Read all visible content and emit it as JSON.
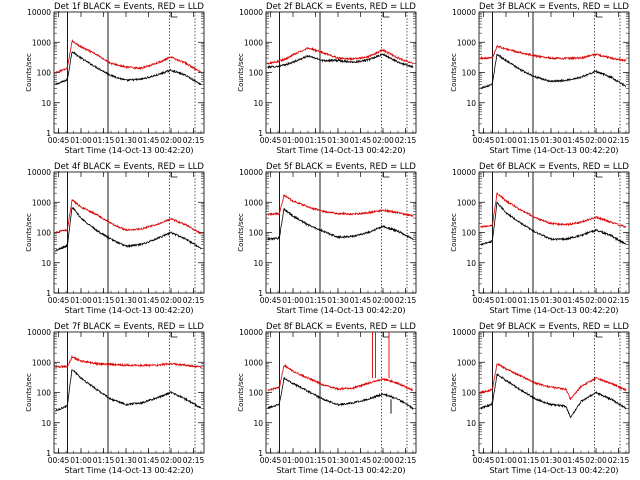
{
  "colors": {
    "background": "#ffffff",
    "axis": "#000000",
    "events": "#000000",
    "lld": "#dd0000"
  },
  "chart_data": [
    {
      "type": "line",
      "title": "Det 1f BLACK = Events, RED = LLD",
      "xlabel": "Start Time (14-Oct-13 00:42:20)",
      "ylabel": "Counts/sec",
      "y_scale": "log",
      "ylim": [
        1,
        10000
      ],
      "xlim": [
        "00:42",
        "02:22"
      ],
      "xticks": [
        "00:45",
        "01:00",
        "01:15",
        "01:30",
        "01:45",
        "02:00",
        "02:15"
      ],
      "yticks": [
        "1",
        "10",
        "100",
        "1000",
        "10000"
      ],
      "solid_markers": [
        "00:51",
        "01:18"
      ],
      "dotted_markers": [
        "01:59",
        "02:16"
      ],
      "x": [
        "00:43",
        "00:50",
        "00:51",
        "00:54",
        "01:00",
        "01:10",
        "01:20",
        "01:30",
        "01:40",
        "01:50",
        "02:00",
        "02:10",
        "02:20"
      ],
      "series": [
        {
          "name": "Events",
          "values": [
            40,
            55,
            60,
            500,
            300,
            150,
            80,
            55,
            60,
            80,
            120,
            80,
            40
          ]
        },
        {
          "name": "LLD",
          "values": [
            100,
            130,
            150,
            1100,
            700,
            400,
            200,
            150,
            140,
            200,
            320,
            200,
            100
          ]
        }
      ]
    },
    {
      "type": "line",
      "title": "Det 2f BLACK = Events, RED = LLD",
      "xlabel": "Start Time (14-Oct-13 00:42:20)",
      "ylabel": "Counts/sec",
      "y_scale": "log",
      "ylim": [
        1,
        10000
      ],
      "xlim": [
        "00:42",
        "02:22"
      ],
      "xticks": [
        "00:45",
        "01:00",
        "01:15",
        "01:30",
        "01:45",
        "02:00",
        "02:15"
      ],
      "yticks": [
        "1",
        "10",
        "100",
        "1000",
        "10000"
      ],
      "solid_markers": [
        "00:51",
        "01:18"
      ],
      "dotted_markers": [
        "01:59",
        "02:16"
      ],
      "x": [
        "00:43",
        "00:50",
        "00:55",
        "01:00",
        "01:10",
        "01:20",
        "01:30",
        "01:40",
        "01:50",
        "02:00",
        "02:10",
        "02:20"
      ],
      "series": [
        {
          "name": "Events",
          "values": [
            150,
            160,
            180,
            220,
            350,
            250,
            250,
            220,
            260,
            400,
            220,
            150
          ]
        },
        {
          "name": "LLD",
          "values": [
            200,
            230,
            280,
            380,
            650,
            450,
            300,
            280,
            330,
            550,
            300,
            200
          ]
        }
      ]
    },
    {
      "type": "line",
      "title": "Det 3f BLACK = Events, RED = LLD",
      "xlabel": "Start Time (14-Oct-13 00:42:20)",
      "ylabel": "Counts/sec",
      "y_scale": "log",
      "ylim": [
        1,
        10000
      ],
      "xlim": [
        "00:42",
        "02:22"
      ],
      "xticks": [
        "00:45",
        "01:00",
        "01:15",
        "01:30",
        "01:45",
        "02:00",
        "02:15"
      ],
      "yticks": [
        "1",
        "10",
        "100",
        "1000",
        "10000"
      ],
      "solid_markers": [
        "00:51",
        "01:18"
      ],
      "dotted_markers": [
        "01:59",
        "02:16"
      ],
      "x": [
        "00:43",
        "00:50",
        "00:51",
        "00:54",
        "01:00",
        "01:10",
        "01:20",
        "01:30",
        "01:40",
        "01:50",
        "02:00",
        "02:10",
        "02:20"
      ],
      "series": [
        {
          "name": "Events",
          "values": [
            30,
            40,
            45,
            400,
            250,
            120,
            70,
            50,
            55,
            70,
            110,
            70,
            35
          ]
        },
        {
          "name": "LLD",
          "values": [
            300,
            300,
            310,
            750,
            600,
            450,
            350,
            300,
            290,
            300,
            400,
            300,
            250
          ]
        }
      ]
    },
    {
      "type": "line",
      "title": "Det 4f BLACK = Events, RED = LLD",
      "xlabel": "Start Time (14-Oct-13 00:42:20)",
      "ylabel": "Counts/sec",
      "y_scale": "log",
      "ylim": [
        1,
        10000
      ],
      "xlim": [
        "00:42",
        "02:22"
      ],
      "xticks": [
        "00:45",
        "01:00",
        "01:15",
        "01:30",
        "01:45",
        "02:00",
        "02:15"
      ],
      "yticks": [
        "1",
        "10",
        "100",
        "1000",
        "10000"
      ],
      "solid_markers": [
        "00:51",
        "01:18"
      ],
      "dotted_markers": [
        "01:59",
        "02:16"
      ],
      "x": [
        "00:43",
        "00:50",
        "00:51",
        "00:54",
        "01:00",
        "01:10",
        "01:20",
        "01:30",
        "01:40",
        "01:50",
        "02:00",
        "02:10",
        "02:20"
      ],
      "series": [
        {
          "name": "Events",
          "values": [
            25,
            35,
            40,
            700,
            300,
            120,
            60,
            35,
            40,
            60,
            100,
            60,
            30
          ]
        },
        {
          "name": "LLD",
          "values": [
            100,
            120,
            130,
            1200,
            700,
            400,
            200,
            120,
            130,
            180,
            280,
            180,
            90
          ]
        }
      ]
    },
    {
      "type": "line",
      "title": "Det 5f BLACK = Events, RED = LLD",
      "xlabel": "Start Time (14-Oct-13 00:42:20)",
      "ylabel": "Counts/sec",
      "y_scale": "log",
      "ylim": [
        1,
        10000
      ],
      "xlim": [
        "00:42",
        "02:22"
      ],
      "xticks": [
        "00:45",
        "01:00",
        "01:15",
        "01:30",
        "01:45",
        "02:00",
        "02:15"
      ],
      "yticks": [
        "1",
        "10",
        "100",
        "1000",
        "10000"
      ],
      "solid_markers": [
        "00:51",
        "01:18"
      ],
      "dotted_markers": [
        "01:59",
        "02:16"
      ],
      "x": [
        "00:43",
        "00:50",
        "00:51",
        "00:54",
        "01:00",
        "01:10",
        "01:20",
        "01:30",
        "01:40",
        "01:50",
        "02:00",
        "02:10",
        "02:20"
      ],
      "series": [
        {
          "name": "Events",
          "values": [
            60,
            65,
            70,
            600,
            350,
            180,
            110,
            70,
            75,
            100,
            160,
            110,
            60
          ]
        },
        {
          "name": "LLD",
          "values": [
            400,
            420,
            430,
            1700,
            1100,
            700,
            500,
            420,
            400,
            450,
            550,
            450,
            350
          ]
        }
      ]
    },
    {
      "type": "line",
      "title": "Det 6f BLACK = Events, RED = LLD",
      "xlabel": "Start Time (14-Oct-13 00:42:20)",
      "ylabel": "Counts/sec",
      "y_scale": "log",
      "ylim": [
        1,
        10000
      ],
      "xlim": [
        "00:42",
        "02:22"
      ],
      "xticks": [
        "00:45",
        "01:00",
        "01:15",
        "01:30",
        "01:45",
        "02:00",
        "02:15"
      ],
      "yticks": [
        "1",
        "10",
        "100",
        "1000",
        "10000"
      ],
      "solid_markers": [
        "00:51",
        "01:18"
      ],
      "dotted_markers": [
        "01:59",
        "02:16"
      ],
      "x": [
        "00:43",
        "00:50",
        "00:51",
        "00:54",
        "01:00",
        "01:10",
        "01:20",
        "01:30",
        "01:40",
        "01:50",
        "02:00",
        "02:10",
        "02:20"
      ],
      "series": [
        {
          "name": "Events",
          "values": [
            40,
            50,
            55,
            1000,
            450,
            200,
            100,
            60,
            60,
            80,
            120,
            80,
            40
          ]
        },
        {
          "name": "LLD",
          "values": [
            150,
            170,
            180,
            2000,
            1100,
            550,
            300,
            200,
            180,
            220,
            320,
            220,
            150
          ]
        }
      ]
    },
    {
      "type": "line",
      "title": "Det 7f BLACK = Events, RED = LLD",
      "xlabel": "Start Time (14-Oct-13 00:42:20)",
      "ylabel": "Counts/sec",
      "y_scale": "log",
      "ylim": [
        1,
        10000
      ],
      "xlim": [
        "00:42",
        "02:22"
      ],
      "xticks": [
        "00:45",
        "01:00",
        "01:15",
        "01:30",
        "01:45",
        "02:00",
        "02:15"
      ],
      "yticks": [
        "1",
        "10",
        "100",
        "1000",
        "10000"
      ],
      "solid_markers": [
        "00:51",
        "01:18"
      ],
      "dotted_markers": [
        "01:59",
        "02:16"
      ],
      "x": [
        "00:43",
        "00:50",
        "00:51",
        "00:54",
        "01:00",
        "01:10",
        "01:20",
        "01:30",
        "01:40",
        "01:50",
        "02:00",
        "02:10",
        "02:20"
      ],
      "series": [
        {
          "name": "Events",
          "values": [
            25,
            35,
            40,
            600,
            300,
            130,
            60,
            40,
            45,
            65,
            100,
            60,
            30
          ]
        },
        {
          "name": "LLD",
          "values": [
            700,
            720,
            730,
            1500,
            1100,
            900,
            850,
            800,
            780,
            800,
            900,
            800,
            700
          ]
        }
      ]
    },
    {
      "type": "line",
      "title": "Det 8f BLACK = Events, RED = LLD",
      "xlabel": "Start Time (14-Oct-13 00:42:20)",
      "ylabel": "Counts/sec",
      "y_scale": "log",
      "ylim": [
        1,
        10000
      ],
      "xlim": [
        "00:42",
        "02:22"
      ],
      "xticks": [
        "00:45",
        "01:00",
        "01:15",
        "01:30",
        "01:45",
        "02:00",
        "02:15"
      ],
      "yticks": [
        "1",
        "10",
        "100",
        "1000",
        "10000"
      ],
      "solid_markers": [
        "00:51",
        "01:18"
      ],
      "dotted_markers": [
        "01:59",
        "02:16"
      ],
      "x": [
        "00:43",
        "00:50",
        "00:51",
        "00:54",
        "01:00",
        "01:10",
        "01:20",
        "01:30",
        "01:40",
        "01:50",
        "02:00",
        "02:10",
        "02:20"
      ],
      "series": [
        {
          "name": "Events",
          "values": [
            30,
            40,
            45,
            300,
            200,
            110,
            60,
            40,
            45,
            60,
            90,
            60,
            30
          ]
        },
        {
          "name": "LLD",
          "values": [
            120,
            140,
            150,
            800,
            500,
            300,
            180,
            130,
            140,
            200,
            280,
            200,
            120
          ]
        }
      ],
      "annotations": [
        "LLD spikes to 10000 near 01:53, 01:55, 02:04"
      ]
    },
    {
      "type": "line",
      "title": "Det 9f BLACK = Events, RED = LLD",
      "xlabel": "Start Time (14-Oct-13 00:42:20)",
      "ylabel": "Counts/sec",
      "y_scale": "log",
      "ylim": [
        1,
        10000
      ],
      "xlim": [
        "00:42",
        "02:22"
      ],
      "xticks": [
        "00:45",
        "01:00",
        "01:15",
        "01:30",
        "01:45",
        "02:00",
        "02:15"
      ],
      "yticks": [
        "1",
        "10",
        "100",
        "1000",
        "10000"
      ],
      "solid_markers": [
        "00:51",
        "01:18"
      ],
      "dotted_markers": [
        "01:59",
        "02:16"
      ],
      "x": [
        "00:43",
        "00:50",
        "00:51",
        "00:54",
        "01:00",
        "01:10",
        "01:20",
        "01:30",
        "01:40",
        "01:43",
        "01:50",
        "02:00",
        "02:10",
        "02:20"
      ],
      "series": [
        {
          "name": "Events",
          "values": [
            30,
            40,
            45,
            400,
            250,
            120,
            60,
            40,
            35,
            15,
            50,
            100,
            60,
            30
          ]
        },
        {
          "name": "LLD",
          "values": [
            100,
            120,
            130,
            900,
            600,
            350,
            200,
            150,
            130,
            60,
            160,
            300,
            200,
            120
          ]
        }
      ]
    }
  ]
}
